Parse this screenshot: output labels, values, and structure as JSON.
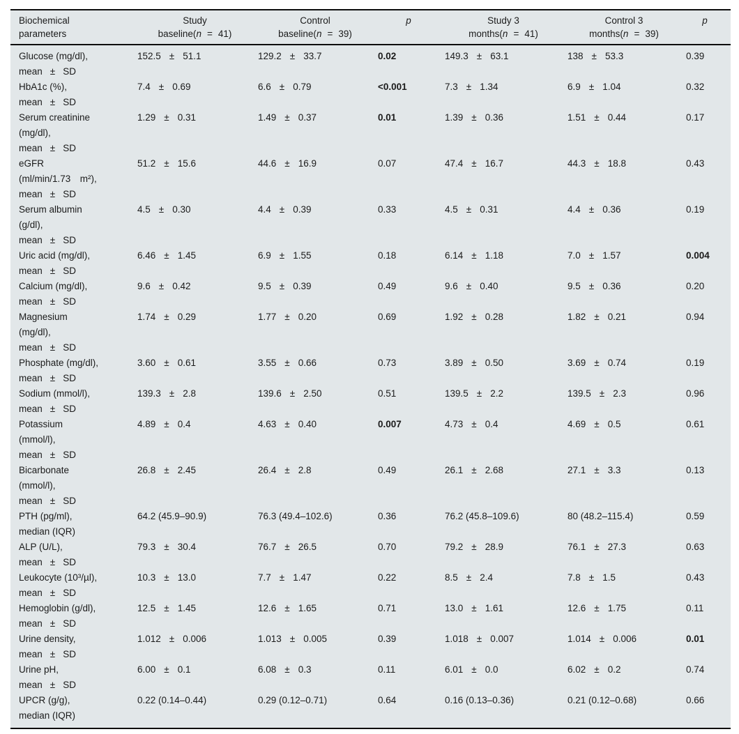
{
  "colors": {
    "table_background": "#e2e7e9",
    "rule": "#0d0d0d",
    "text": "#1b1b1b"
  },
  "table": {
    "pm_symbol": "±",
    "header": {
      "param_line1": "Biochemical",
      "param_line2": "parameters",
      "p_label": "p",
      "groups": [
        {
          "title": "Study",
          "pre": "baseline(",
          "n": "n",
          "eq": "=",
          "count": "41)"
        },
        {
          "title": "Control",
          "pre": "baseline(",
          "n": "n",
          "eq": "=",
          "count": "39)"
        },
        {
          "title": "Study 3",
          "pre": "months(",
          "n": "n",
          "eq": "=",
          "count": "41)"
        },
        {
          "title": "Control 3",
          "pre": "months(",
          "n": "n",
          "eq": "=",
          "count": "39)"
        }
      ]
    },
    "rows": [
      {
        "param": [
          "Glucose (mg/dl),",
          "mean ± SD"
        ],
        "c": [
          [
            "pm",
            "152.5",
            "51.1"
          ],
          [
            "pm",
            "129.2",
            "33.7"
          ],
          [
            "p",
            "0.02",
            true
          ],
          [
            "pm",
            "149.3",
            "63.1"
          ],
          [
            "pm",
            "138",
            "53.3"
          ],
          [
            "p",
            "0.39",
            false
          ]
        ]
      },
      {
        "param": [
          "HbA1c (%),",
          "mean ± SD"
        ],
        "c": [
          [
            "pm",
            "7.4",
            "0.69"
          ],
          [
            "pm",
            "6.6",
            "0.79"
          ],
          [
            "p",
            "<0.001",
            true
          ],
          [
            "pm",
            "7.3",
            "1.34"
          ],
          [
            "pm",
            "6.9",
            "1.04"
          ],
          [
            "p",
            "0.32",
            false
          ]
        ]
      },
      {
        "param": [
          "Serum creatinine",
          "(mg/dl),",
          "mean ± SD"
        ],
        "c": [
          [
            "pm",
            "1.29",
            "0.31"
          ],
          [
            "pm",
            "1.49",
            "0.37"
          ],
          [
            "p",
            "0.01",
            true
          ],
          [
            "pm",
            "1.39",
            "0.36"
          ],
          [
            "pm",
            "1.51",
            "0.44"
          ],
          [
            "p",
            "0.17",
            false
          ]
        ]
      },
      {
        "param": [
          "eGFR",
          "(ml/min/1.73 m²),",
          "mean ± SD"
        ],
        "c": [
          [
            "pm",
            "51.2",
            "15.6"
          ],
          [
            "pm",
            "44.6",
            "16.9"
          ],
          [
            "p",
            "0.07",
            false
          ],
          [
            "pm",
            "47.4",
            "16.7"
          ],
          [
            "pm",
            "44.3",
            "18.8"
          ],
          [
            "p",
            "0.43",
            false
          ]
        ]
      },
      {
        "param": [
          "Serum albumin",
          "(g/dl),",
          "mean ± SD"
        ],
        "c": [
          [
            "pm",
            "4.5",
            "0.30"
          ],
          [
            "pm",
            "4.4",
            "0.39"
          ],
          [
            "p",
            "0.33",
            false
          ],
          [
            "pm",
            "4.5",
            "0.31"
          ],
          [
            "pm",
            "4.4",
            "0.36"
          ],
          [
            "p",
            "0.19",
            false
          ]
        ]
      },
      {
        "param": [
          "Uric acid (mg/dl),",
          "mean ± SD"
        ],
        "c": [
          [
            "pm",
            "6.46",
            "1.45"
          ],
          [
            "pm",
            "6.9",
            "1.55"
          ],
          [
            "p",
            "0.18",
            false
          ],
          [
            "pm",
            "6.14",
            "1.18"
          ],
          [
            "pm",
            "7.0",
            "1.57"
          ],
          [
            "p",
            "0.004",
            true
          ]
        ]
      },
      {
        "param": [
          "Calcium (mg/dl),",
          "mean ± SD"
        ],
        "c": [
          [
            "pm",
            "9.6",
            "0.42"
          ],
          [
            "pm",
            "9.5",
            "0.39"
          ],
          [
            "p",
            "0.49",
            false
          ],
          [
            "pm",
            "9.6",
            "0.40"
          ],
          [
            "pm",
            "9.5",
            "0.36"
          ],
          [
            "p",
            "0.20",
            false
          ]
        ]
      },
      {
        "param": [
          "Magnesium",
          "(mg/dl),",
          "mean ± SD"
        ],
        "c": [
          [
            "pm",
            "1.74",
            "0.29"
          ],
          [
            "pm",
            "1.77",
            "0.20"
          ],
          [
            "p",
            "0.69",
            false
          ],
          [
            "pm",
            "1.92",
            "0.28"
          ],
          [
            "pm",
            "1.82",
            "0.21"
          ],
          [
            "p",
            "0.94",
            false
          ]
        ]
      },
      {
        "param": [
          "Phosphate (mg/dl),",
          "mean ± SD"
        ],
        "c": [
          [
            "pm",
            "3.60",
            "0.61"
          ],
          [
            "pm",
            "3.55",
            "0.66"
          ],
          [
            "p",
            "0.73",
            false
          ],
          [
            "pm",
            "3.89",
            "0.50"
          ],
          [
            "pm",
            "3.69",
            "0.74"
          ],
          [
            "p",
            "0.19",
            false
          ]
        ]
      },
      {
        "param": [
          "Sodium (mmol/l),",
          "mean ± SD"
        ],
        "c": [
          [
            "pm",
            "139.3",
            "2.8"
          ],
          [
            "pm",
            "139.6",
            "2.50"
          ],
          [
            "p",
            "0.51",
            false
          ],
          [
            "pm",
            "139.5",
            "2.2"
          ],
          [
            "pm",
            "139.5",
            "2.3"
          ],
          [
            "p",
            "0.96",
            false
          ]
        ]
      },
      {
        "param": [
          "Potassium",
          "(mmol/l),",
          "mean ± SD"
        ],
        "c": [
          [
            "pm",
            "4.89",
            "0.4"
          ],
          [
            "pm",
            "4.63",
            "0.40"
          ],
          [
            "p",
            "0.007",
            true
          ],
          [
            "pm",
            "4.73",
            "0.4"
          ],
          [
            "pm",
            "4.69",
            "0.5"
          ],
          [
            "p",
            "0.61",
            false
          ]
        ]
      },
      {
        "param": [
          "Bicarbonate",
          "(mmol/l),",
          "mean ± SD"
        ],
        "c": [
          [
            "pm",
            "26.8",
            "2.45"
          ],
          [
            "pm",
            "26.4",
            "2.8"
          ],
          [
            "p",
            "0.49",
            false
          ],
          [
            "pm",
            "26.1",
            "2.68"
          ],
          [
            "pm",
            "27.1",
            "3.3"
          ],
          [
            "p",
            "0.13",
            false
          ]
        ]
      },
      {
        "param": [
          "PTH (pg/ml),",
          "median (IQR)"
        ],
        "c": [
          [
            "md",
            "64.2 (45.9–90.9)"
          ],
          [
            "md",
            "76.3 (49.4–102.6)"
          ],
          [
            "p",
            "0.36",
            false
          ],
          [
            "md",
            "76.2 (45.8–109.6)"
          ],
          [
            "md",
            "80 (48.2–115.4)"
          ],
          [
            "p",
            "0.59",
            false
          ]
        ]
      },
      {
        "param": [
          "ALP (U/L),",
          "mean ± SD"
        ],
        "c": [
          [
            "pm",
            "79.3",
            "30.4"
          ],
          [
            "pm",
            "76.7",
            "26.5"
          ],
          [
            "p",
            "0.70",
            false
          ],
          [
            "pm",
            "79.2",
            "28.9"
          ],
          [
            "pm",
            "76.1",
            "27.3"
          ],
          [
            "p",
            "0.63",
            false
          ]
        ]
      },
      {
        "param": [
          "Leukocyte (10³/µl),",
          "mean ± SD"
        ],
        "c": [
          [
            "pm",
            "10.3",
            "13.0"
          ],
          [
            "pm",
            "7.7",
            "1.47"
          ],
          [
            "p",
            "0.22",
            false
          ],
          [
            "pm",
            "8.5",
            "2.4"
          ],
          [
            "pm",
            "7.8",
            "1.5"
          ],
          [
            "p",
            "0.43",
            false
          ]
        ]
      },
      {
        "param": [
          "Hemoglobin (g/dl),",
          "mean ± SD"
        ],
        "c": [
          [
            "pm",
            "12.5",
            "1.45"
          ],
          [
            "pm",
            "12.6",
            "1.65"
          ],
          [
            "p",
            "0.71",
            false
          ],
          [
            "pm",
            "13.0",
            "1.61"
          ],
          [
            "pm",
            "12.6",
            "1.75"
          ],
          [
            "p",
            "0.11",
            false
          ]
        ]
      },
      {
        "param": [
          "Urine density,",
          "mean ± SD"
        ],
        "c": [
          [
            "pm",
            "1.012",
            "0.006"
          ],
          [
            "pm",
            "1.013",
            "0.005"
          ],
          [
            "p",
            "0.39",
            false
          ],
          [
            "pm",
            "1.018",
            "0.007"
          ],
          [
            "pm",
            "1.014",
            "0.006"
          ],
          [
            "p",
            "0.01",
            true
          ]
        ]
      },
      {
        "param": [
          "Urine pH,",
          "mean ± SD"
        ],
        "c": [
          [
            "pm",
            "6.00",
            "0.1"
          ],
          [
            "pm",
            "6.08",
            "0.3"
          ],
          [
            "p",
            "0.11",
            false
          ],
          [
            "pm",
            "6.01",
            "0.0"
          ],
          [
            "pm",
            "6.02",
            "0.2"
          ],
          [
            "p",
            "0.74",
            false
          ]
        ]
      },
      {
        "param": [
          "UPCR (g/g),",
          "median (IQR)"
        ],
        "c": [
          [
            "md",
            "0.22 (0.14–0.44)"
          ],
          [
            "md",
            "0.29 (0.12–0.71)"
          ],
          [
            "p",
            "0.64",
            false
          ],
          [
            "md",
            "0.16 (0.13–0.36)"
          ],
          [
            "md",
            "0.21 (0.12–0.68)"
          ],
          [
            "p",
            "0.66",
            false
          ]
        ]
      }
    ]
  }
}
